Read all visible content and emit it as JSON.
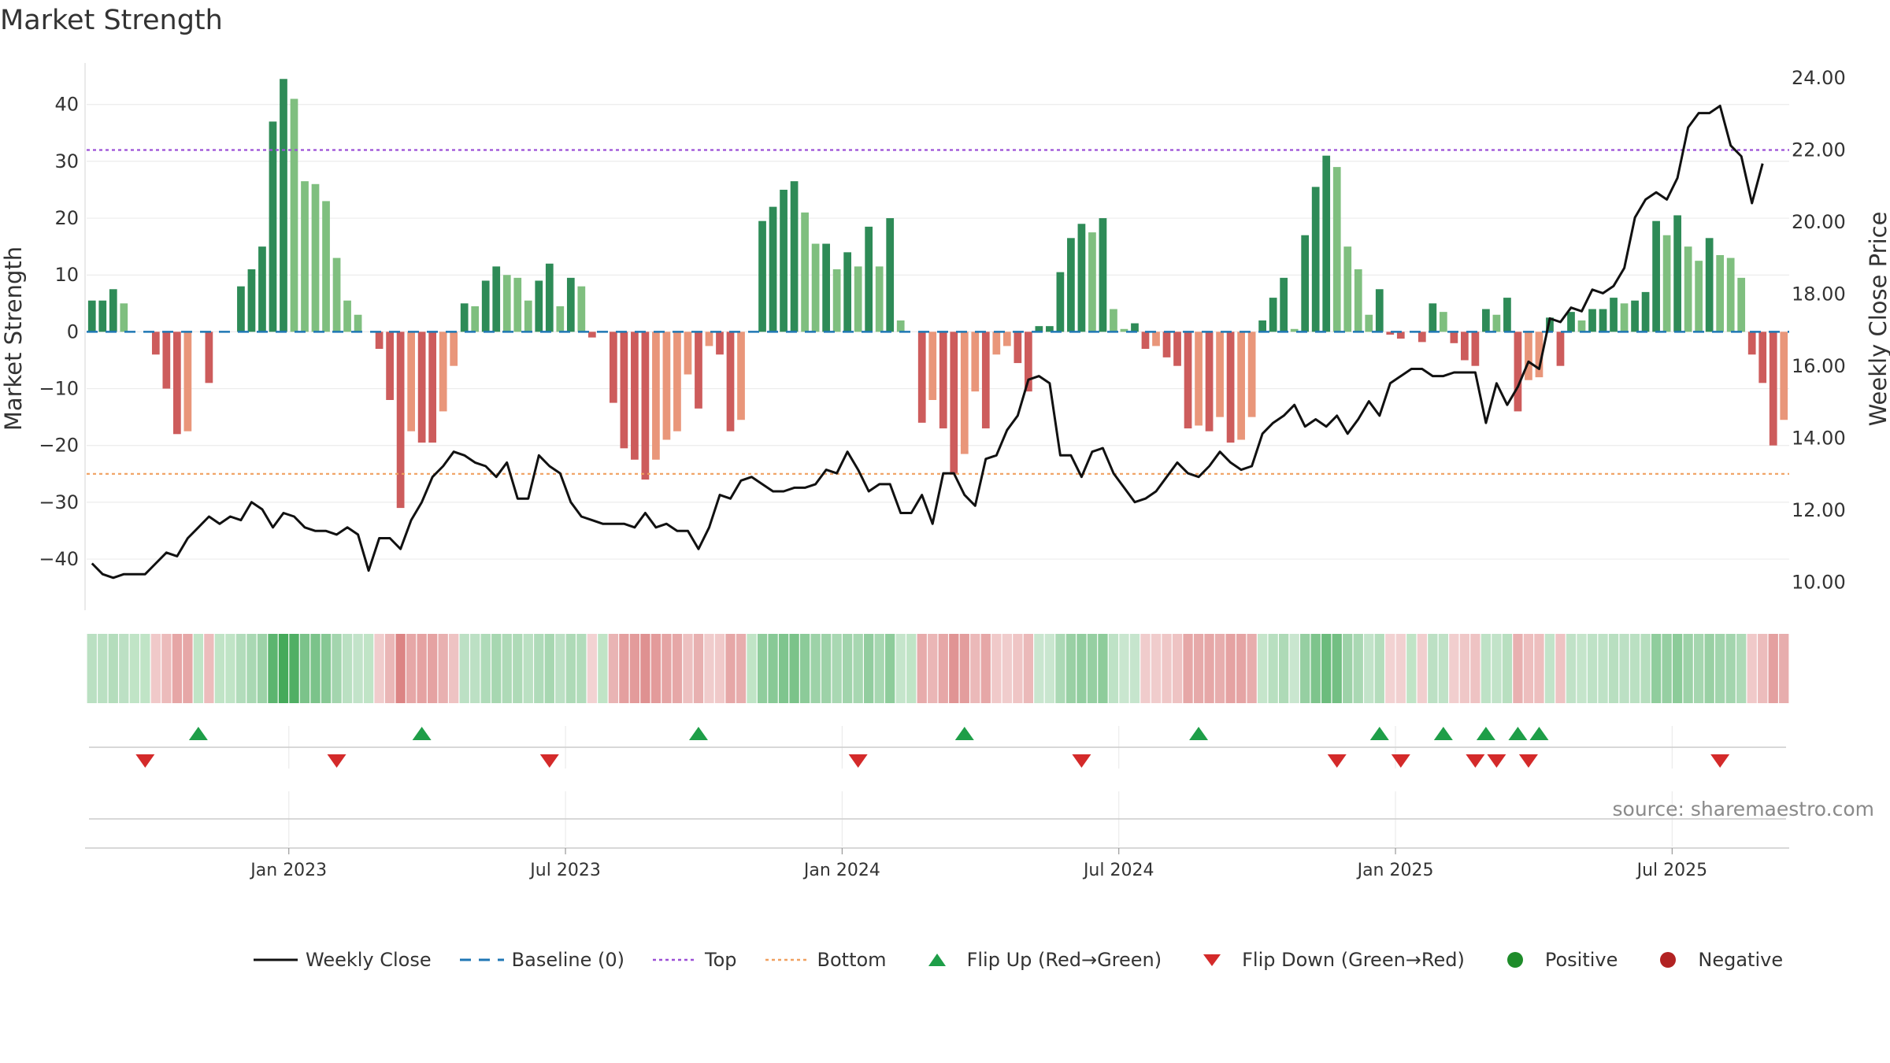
{
  "title": "Market Strength",
  "source": "source: sharemaestro.com",
  "legend": {
    "weekly_close": "Weekly Close",
    "baseline": "Baseline (0)",
    "top": "Top",
    "bottom": "Bottom",
    "flip_up": "Flip Up (Red→Green)",
    "flip_down": "Flip Down (Green→Red)",
    "positive": "Positive",
    "negative": "Negative"
  },
  "colors": {
    "pos_dark": "#2e8b57",
    "pos_light": "#7fbf7f",
    "neg_dark": "#cd5c5c",
    "neg_light": "#e9967a",
    "price_line": "#111111",
    "baseline": "#1f77b4",
    "top_line": "#9b4fd6",
    "bottom_line": "#f0a060",
    "flip_up": "#1e9e48",
    "flip_down": "#d42a2a",
    "positive_dot": "#1e8c2a",
    "negative_dot": "#b22222"
  },
  "chart_data": {
    "type": "bar",
    "title": "Market Strength",
    "ylabel": "Market Strength",
    "y2label": "Weekly Close Price",
    "ylim": [
      -49,
      48
    ],
    "y2lim": [
      9.2,
      24.5
    ],
    "yticks": [
      40,
      30,
      20,
      10,
      0,
      -10,
      -20,
      -30,
      -40
    ],
    "ytick_labels": [
      "40",
      "30",
      "20",
      "10",
      "0",
      "−10",
      "−20",
      "−30",
      "−40"
    ],
    "y2ticks": [
      24,
      22,
      20,
      18,
      16,
      14,
      12,
      10
    ],
    "y2tick_labels": [
      "24.00",
      "22.00",
      "20.00",
      "18.00",
      "16.00",
      "14.00",
      "12.00",
      "10.00"
    ],
    "xticks": [
      "Jan 2023",
      "Jul 2023",
      "Jan 2024",
      "Jul 2024",
      "Jan 2025",
      "Jul 2025"
    ],
    "xtick_weeks": [
      19,
      45,
      71,
      97,
      123,
      149
    ],
    "top_level": 32,
    "bottom_level": -25,
    "grid": true,
    "legend_position": "bottom",
    "strength": [
      5.5,
      5.5,
      7.5,
      5,
      0,
      0,
      -4,
      -10,
      -18,
      -17.5,
      0,
      -9,
      0,
      0,
      8,
      11,
      15,
      37,
      44.5,
      41,
      26.5,
      26,
      23,
      13,
      5.5,
      3,
      0,
      -3,
      -12,
      -31,
      -17.5,
      -19.5,
      -19.5,
      -14,
      -6,
      5,
      4.5,
      9,
      11.5,
      10,
      9.5,
      5.5,
      9,
      12,
      4.5,
      9.5,
      8,
      -1,
      0,
      -12.5,
      -20.5,
      -22.5,
      -26,
      -22.5,
      -19,
      -17.5,
      -7.5,
      -13.5,
      -2.5,
      -4,
      -17.5,
      -15.5,
      0,
      19.5,
      22,
      25,
      26.5,
      21,
      15.5,
      15.5,
      11,
      14,
      11.5,
      18.5,
      11.5,
      20,
      2,
      0,
      -16,
      -12,
      -17,
      -25,
      -21.5,
      -10.5,
      -17,
      -4,
      -2.5,
      -5.5,
      -10.5,
      1,
      1,
      10.5,
      16.5,
      19,
      17.5,
      20,
      4,
      0.5,
      1.5,
      -3,
      -2.5,
      -4.5,
      -6,
      -17,
      -16.5,
      -17.5,
      -15,
      -19.5,
      -19,
      -15,
      2,
      6,
      9.5,
      0.5,
      17,
      25.5,
      31,
      29,
      15,
      11,
      3,
      7.5,
      -0.5,
      -1.2,
      0,
      -1.8,
      5,
      3.5,
      -2,
      -5,
      -6,
      4,
      3,
      6,
      -14,
      -8.5,
      -8,
      2.5,
      -6,
      3.5,
      2,
      4,
      4,
      6,
      5,
      5.5,
      7,
      19.5,
      17,
      20.5,
      15,
      12.5,
      16.5,
      13.5,
      13,
      9.5,
      -4,
      -9,
      -20,
      -15.5
    ],
    "close": [
      10.5,
      10.2,
      10.1,
      10.2,
      10.2,
      10.2,
      10.5,
      10.8,
      10.7,
      11.2,
      11.5,
      11.8,
      11.6,
      11.8,
      11.7,
      12.2,
      12.0,
      11.5,
      11.9,
      11.8,
      11.5,
      11.4,
      11.4,
      11.3,
      11.5,
      11.3,
      10.3,
      11.2,
      11.2,
      10.9,
      11.7,
      12.2,
      12.9,
      13.2,
      13.6,
      13.5,
      13.3,
      13.2,
      12.9,
      13.3,
      12.3,
      12.3,
      13.5,
      13.2,
      13.0,
      12.2,
      11.8,
      11.7,
      11.6,
      11.6,
      11.6,
      11.5,
      11.9,
      11.5,
      11.6,
      11.4,
      11.4,
      10.9,
      11.5,
      12.4,
      12.3,
      12.8,
      12.9,
      12.7,
      12.5,
      12.5,
      12.6,
      12.6,
      12.7,
      13.1,
      13.0,
      13.6,
      13.1,
      12.5,
      12.7,
      12.7,
      11.9,
      11.9,
      12.4,
      11.6,
      13.0,
      13.0,
      12.4,
      12.1,
      13.4,
      13.5,
      14.2,
      14.6,
      15.6,
      15.7,
      15.5,
      13.5,
      13.5,
      12.9,
      13.6,
      13.7,
      13.0,
      12.6,
      12.2,
      12.3,
      12.5,
      12.9,
      13.3,
      13.0,
      12.9,
      13.2,
      13.6,
      13.3,
      13.1,
      13.2,
      14.1,
      14.4,
      14.6,
      14.9,
      14.3,
      14.5,
      14.3,
      14.6,
      14.1,
      14.5,
      15.0,
      14.6,
      15.5,
      15.7,
      15.9,
      15.9,
      15.7,
      15.7,
      15.8,
      15.8,
      15.8,
      14.4,
      15.5,
      14.9,
      15.4,
      16.1,
      15.9,
      17.3,
      17.2,
      17.6,
      17.5,
      18.1,
      18.0,
      18.2,
      18.7,
      20.1,
      20.6,
      20.8,
      20.6,
      21.2,
      22.6,
      23.0,
      23.0,
      23.2,
      22.1,
      21.8,
      20.5,
      21.6
    ],
    "flip_up_weeks": [
      10,
      31,
      57,
      82,
      104,
      121,
      127,
      131,
      134,
      136
    ],
    "flip_down_weeks": [
      5,
      23,
      43,
      72,
      93,
      117,
      123,
      130,
      132,
      135,
      153
    ]
  }
}
